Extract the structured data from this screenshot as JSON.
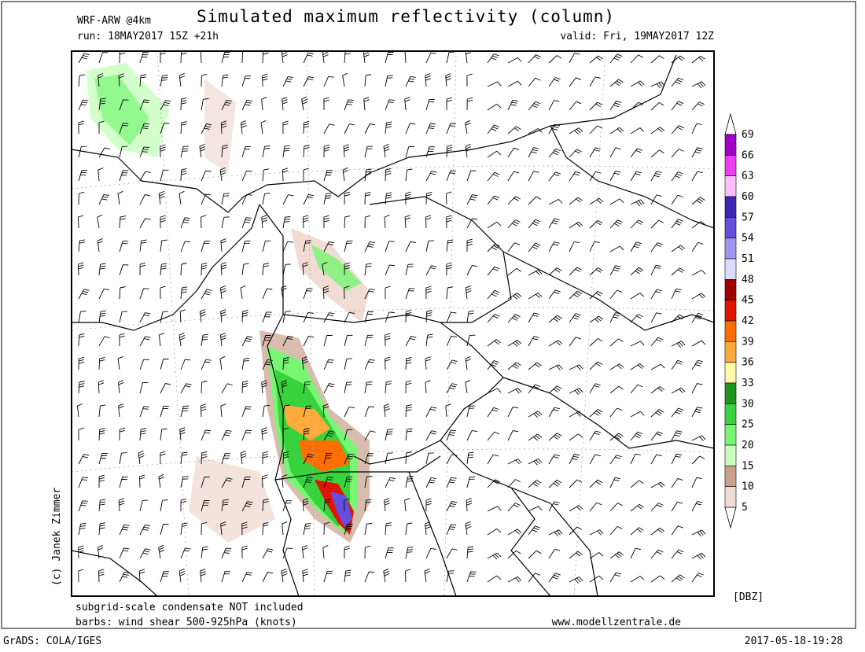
{
  "header": {
    "model": "WRF-ARW @4km",
    "title": "Simulated maximum reflectivity (column)",
    "run": "run: 18MAY2017 15Z +21h",
    "valid": "valid: Fri, 19MAY2017 12Z"
  },
  "credit": "(c) Janek Zimmer",
  "notes": [
    "subgrid-scale condensate NOT included",
    "barbs: wind shear 500-925hPa (knots)"
  ],
  "website": "www.modellzentrale.de",
  "legend": {
    "unit": "[DBZ]",
    "levels": [
      69,
      66,
      63,
      60,
      57,
      54,
      51,
      48,
      45,
      42,
      39,
      36,
      33,
      30,
      25,
      20,
      15,
      10,
      5
    ],
    "colors": [
      "#a000c8",
      "#f03cf0",
      "#ffbeff",
      "#3c28b4",
      "#6450dc",
      "#a096f0",
      "#dcdcff",
      "#a00000",
      "#e11400",
      "#ff6e00",
      "#ffaa3c",
      "#fffaaa",
      "#1e961e",
      "#37d23c",
      "#78f573",
      "#c8ffbe",
      "#c8a08c",
      "#f0dcd2"
    ]
  },
  "footer": {
    "software": "GrADS: COLA/IGES",
    "timestamp": "2017-05-18-19:28"
  }
}
